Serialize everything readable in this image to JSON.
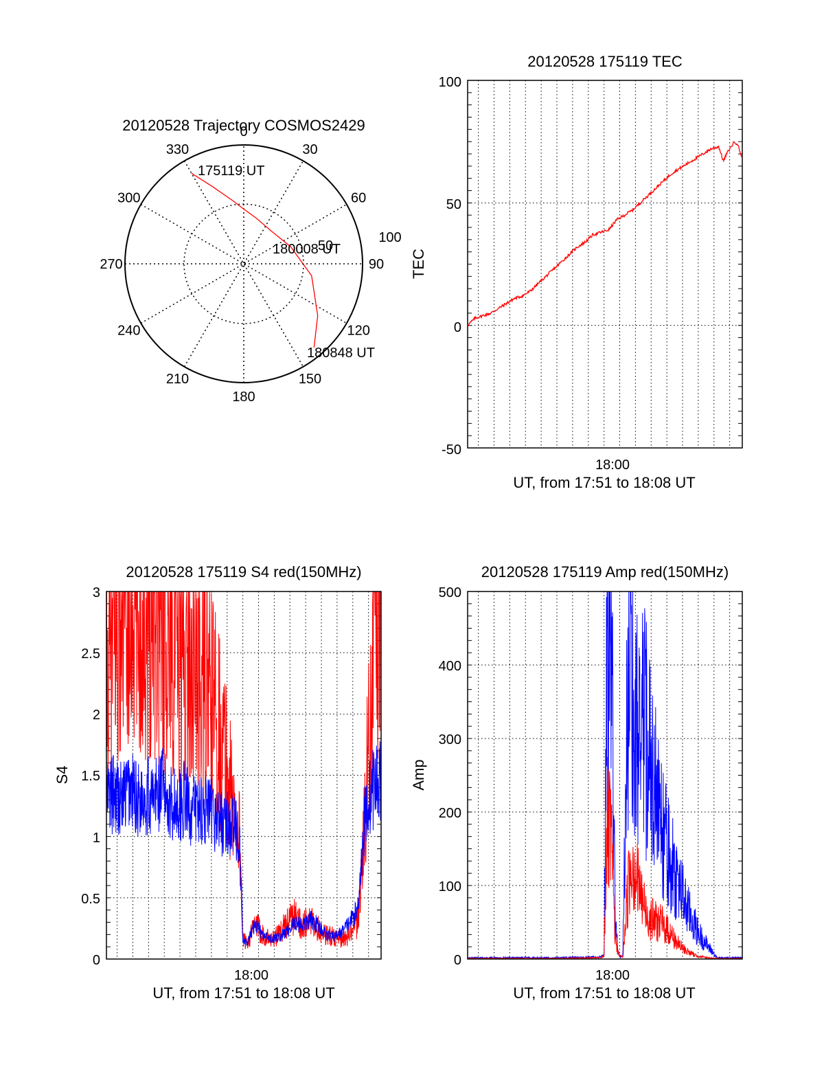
{
  "colors": {
    "red": "#ff0000",
    "blue": "#0000ff",
    "axis": "#000000",
    "grid": "#000000"
  },
  "polar": {
    "title": "20120528 Trajectory COSMOS2429",
    "angle_labels": [
      "0",
      "30",
      "60",
      "90",
      "120",
      "150",
      "180",
      "210",
      "240",
      "270",
      "300",
      "330"
    ],
    "radius_labels": [
      "50",
      "100"
    ],
    "annotations": {
      "start": "175119 UT",
      "mid": "180008 UT",
      "end": "180848 UT"
    }
  },
  "tec": {
    "title": "20120528 175119 TEC",
    "ylabel": "TEC",
    "xlabel": "UT, from 17:51 to 18:08 UT",
    "yticks": [
      "100",
      "50",
      "0",
      "-50"
    ],
    "xtick": "18:00"
  },
  "s4": {
    "title": "20120528 175119 S4 red(150MHz)",
    "ylabel": "S4",
    "xlabel": "UT, from 17:51 to 18:08 UT",
    "yticks": [
      "3",
      "2.5",
      "2",
      "1.5",
      "1",
      "0.5",
      "0"
    ],
    "xtick": "18:00"
  },
  "amp": {
    "title": "20120528 175119 Amp red(150MHz)",
    "ylabel": "Amp",
    "xlabel": "UT, from 17:51 to 18:08 UT",
    "yticks": [
      "500",
      "400",
      "300",
      "200",
      "100",
      "0"
    ],
    "xtick": "18:00"
  },
  "chart_data": [
    {
      "type": "scatter",
      "title": "20120528 Trajectory COSMOS2429",
      "projection": "polar",
      "angle_unit": "deg (azimuth)",
      "radius_range": [
        0,
        100
      ],
      "series": [
        {
          "color": "#ff0000",
          "points": [
            [
              330,
              88
            ],
            [
              338,
              70
            ],
            [
              350,
              54
            ],
            [
              0,
              46
            ],
            [
              15,
              40
            ],
            [
              40,
              36
            ],
            [
              70,
              42
            ],
            [
              100,
              58
            ],
            [
              125,
              76
            ],
            [
              140,
              92
            ]
          ]
        }
      ]
    },
    {
      "type": "line",
      "title": "20120528 175119 TEC",
      "xlabel": "UT, from 17:51 to 18:08 UT",
      "ylabel": "TEC",
      "xlim": [
        17.8553,
        18.1467
      ],
      "ylim": [
        -50,
        100
      ],
      "grid": true,
      "series": [
        {
          "color": "#ff0000",
          "x": [
            17.8553,
            17.8633,
            17.8717,
            17.88,
            17.8883,
            17.8967,
            17.905,
            17.9133,
            17.9217,
            17.93,
            17.9383,
            17.9467,
            17.955,
            17.9633,
            17.9717,
            17.98,
            17.9883,
            17.9967,
            18.005,
            18.0133,
            18.0217,
            18.03,
            18.0383,
            18.0467,
            18.055,
            18.0633,
            18.0717,
            18.08,
            18.0883,
            18.0967,
            18.105,
            18.1133,
            18.1217,
            18.1267,
            18.13,
            18.1383,
            18.1417,
            18.1467
          ],
          "y": [
            0,
            3,
            4,
            5,
            7,
            9,
            11,
            12,
            14,
            17,
            20,
            23,
            26,
            29,
            32,
            34,
            37,
            38,
            39,
            43,
            45,
            47,
            50,
            53,
            56,
            59,
            62,
            64,
            66,
            68,
            70,
            72,
            73,
            67,
            70,
            75,
            74,
            68
          ]
        }
      ]
    },
    {
      "type": "line",
      "title": "20120528 175119 S4 red(150MHz)",
      "xlabel": "UT, from 17:51 to 18:08 UT",
      "ylabel": "S4",
      "xlim": [
        17.8553,
        18.1467
      ],
      "ylim": [
        0,
        3
      ],
      "grid": true,
      "series": [
        {
          "color": "#ff0000",
          "x": [
            17.8553,
            17.8633,
            17.8717,
            17.88,
            17.8883,
            17.8967,
            17.905,
            17.9133,
            17.9217,
            17.93,
            17.9383,
            17.9467,
            17.955,
            17.9633,
            17.9717,
            17.98,
            17.9883,
            17.9967,
            18.0,
            18.005,
            18.0133,
            18.0217,
            18.03,
            18.0383,
            18.0467,
            18.055,
            18.0633,
            18.0717,
            18.08,
            18.0883,
            18.0967,
            18.105,
            18.1133,
            18.1217,
            18.13,
            18.1383,
            18.1467
          ],
          "y": [
            2.2,
            2.6,
            2.8,
            2.9,
            2.8,
            2.9,
            3.0,
            2.7,
            2.8,
            2.6,
            2.5,
            2.4,
            2.3,
            2.2,
            2.0,
            1.7,
            1.3,
            1.0,
            0.15,
            0.14,
            0.28,
            0.2,
            0.16,
            0.2,
            0.3,
            0.35,
            0.28,
            0.3,
            0.25,
            0.2,
            0.18,
            0.15,
            0.2,
            0.3,
            1.2,
            2.5,
            3.0
          ]
        },
        {
          "color": "#0000ff",
          "x": [
            17.8553,
            17.8633,
            17.8717,
            17.88,
            17.8883,
            17.8967,
            17.905,
            17.9133,
            17.9217,
            17.93,
            17.9383,
            17.9467,
            17.955,
            17.9633,
            17.9717,
            17.98,
            17.9883,
            17.9967,
            18.0,
            18.005,
            18.0133,
            18.0217,
            18.03,
            18.0383,
            18.0467,
            18.055,
            18.0633,
            18.0717,
            18.08,
            18.0883,
            18.0967,
            18.105,
            18.1133,
            18.1217,
            18.13,
            18.1383,
            18.1467
          ],
          "y": [
            1.3,
            1.35,
            1.3,
            1.4,
            1.3,
            1.35,
            1.3,
            1.4,
            1.3,
            1.25,
            1.3,
            1.2,
            1.25,
            1.2,
            1.15,
            1.1,
            1.1,
            1.0,
            0.15,
            0.13,
            0.3,
            0.18,
            0.16,
            0.18,
            0.22,
            0.3,
            0.28,
            0.32,
            0.28,
            0.2,
            0.18,
            0.22,
            0.3,
            0.4,
            1.2,
            1.4,
            1.5
          ]
        }
      ]
    },
    {
      "type": "line",
      "title": "20120528 175119 Amp red(150MHz)",
      "xlabel": "UT, from 17:51 to 18:08 UT",
      "ylabel": "Amp",
      "xlim": [
        17.8553,
        18.1467
      ],
      "ylim": [
        0,
        500
      ],
      "grid": true,
      "series": [
        {
          "color": "#ff0000",
          "x": [
            17.8553,
            17.9,
            17.95,
            17.9967,
            18.0,
            18.003,
            18.008,
            18.012,
            18.016,
            18.02,
            18.025,
            18.03,
            18.035,
            18.04,
            18.045,
            18.05,
            18.06,
            18.07,
            18.08,
            18.09,
            18.1,
            18.11,
            18.12,
            18.1467
          ],
          "y": [
            1,
            1,
            1,
            2,
            5,
            200,
            170,
            30,
            5,
            3,
            100,
            160,
            120,
            90,
            70,
            60,
            55,
            40,
            20,
            10,
            4,
            2,
            1,
            1
          ]
        },
        {
          "color": "#0000ff",
          "x": [
            17.8553,
            17.9,
            17.95,
            17.9967,
            18.0,
            18.003,
            18.008,
            18.012,
            18.016,
            18.02,
            18.025,
            18.03,
            18.035,
            18.04,
            18.045,
            18.05,
            18.06,
            18.07,
            18.08,
            18.09,
            18.1,
            18.11,
            18.12,
            18.1467
          ],
          "y": [
            2,
            2,
            2,
            3,
            5,
            420,
            460,
            50,
            5,
            3,
            440,
            420,
            380,
            360,
            330,
            300,
            200,
            150,
            110,
            70,
            40,
            20,
            2,
            2
          ]
        }
      ]
    }
  ]
}
